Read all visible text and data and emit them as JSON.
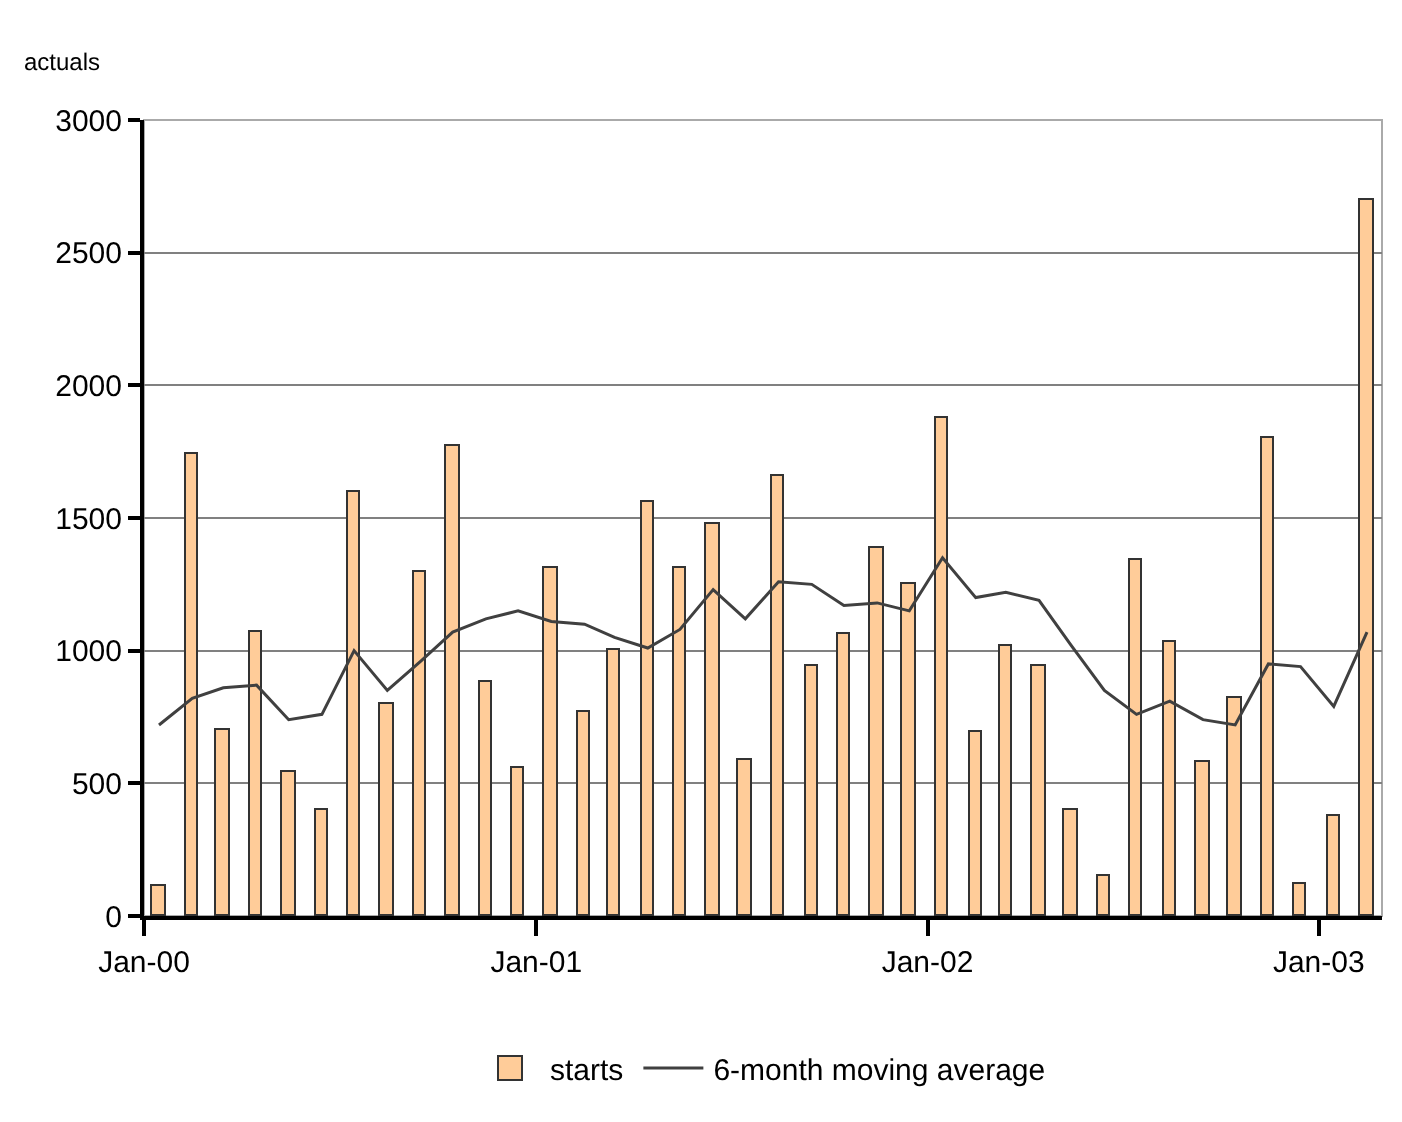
{
  "chart_data": {
    "type": "bar",
    "ylabel": "actuals",
    "x": [
      "2000-01-15",
      "2000-02-15",
      "2000-03-15",
      "2000-04-15",
      "2000-05-15",
      "2000-06-15",
      "2000-07-15",
      "2000-08-15",
      "2000-09-15",
      "2000-10-15",
      "2000-11-15",
      "2000-12-15",
      "2001-01-15",
      "2001-02-15",
      "2001-03-15",
      "2001-04-15",
      "2001-05-15",
      "2001-06-15",
      "2001-07-15",
      "2001-08-15",
      "2001-09-15",
      "2001-10-15",
      "2001-11-15",
      "2001-12-15",
      "2002-01-15",
      "2002-02-15",
      "2002-03-15",
      "2002-04-15",
      "2002-05-15",
      "2002-06-15",
      "2002-07-15",
      "2002-08-15",
      "2002-09-15",
      "2002-10-15",
      "2002-11-15",
      "2002-12-15",
      "2003-01-15",
      "2003-02-15"
    ],
    "series": [
      {
        "name": "starts",
        "color": "#ffcc99",
        "values": [
          110,
          1740,
          700,
          1070,
          540,
          400,
          1600,
          800,
          1300,
          1770,
          880,
          560,
          1310,
          770,
          1000,
          1560,
          1310,
          1480,
          590,
          1660,
          940,
          1060,
          1390,
          1250,
          1880,
          690,
          1020,
          940,
          400,
          150,
          1340,
          1030,
          580,
          820,
          1800,
          120,
          380,
          2700
        ]
      },
      {
        "name": "6-month moving average",
        "type": "line",
        "color": "#404040",
        "values": [
          720,
          820,
          860,
          870,
          740,
          760,
          1000,
          850,
          960,
          1070,
          1120,
          1150,
          1110,
          1100,
          1050,
          1010,
          1080,
          1230,
          1120,
          1260,
          1250,
          1170,
          1180,
          1150,
          1350,
          1200,
          1220,
          1190,
          1020,
          850,
          760,
          810,
          740,
          720,
          950,
          940,
          790,
          1070
        ]
      }
    ],
    "xlim": [
      "2000-01-01",
      "2003-03-01"
    ],
    "xticks": [
      {
        "value": "2000-01-01",
        "label": "Jan-00"
      },
      {
        "value": "2001-01-01",
        "label": "Jan-01"
      },
      {
        "value": "2002-01-01",
        "label": "Jan-02"
      },
      {
        "value": "2003-01-01",
        "label": "Jan-03"
      }
    ],
    "ylim": [
      0,
      3000
    ],
    "yticks": [
      0,
      500,
      1000,
      1500,
      2000,
      2500,
      3000
    ],
    "grid": "y",
    "legend": "bottom",
    "marker": "none",
    "line_style": "solid"
  }
}
